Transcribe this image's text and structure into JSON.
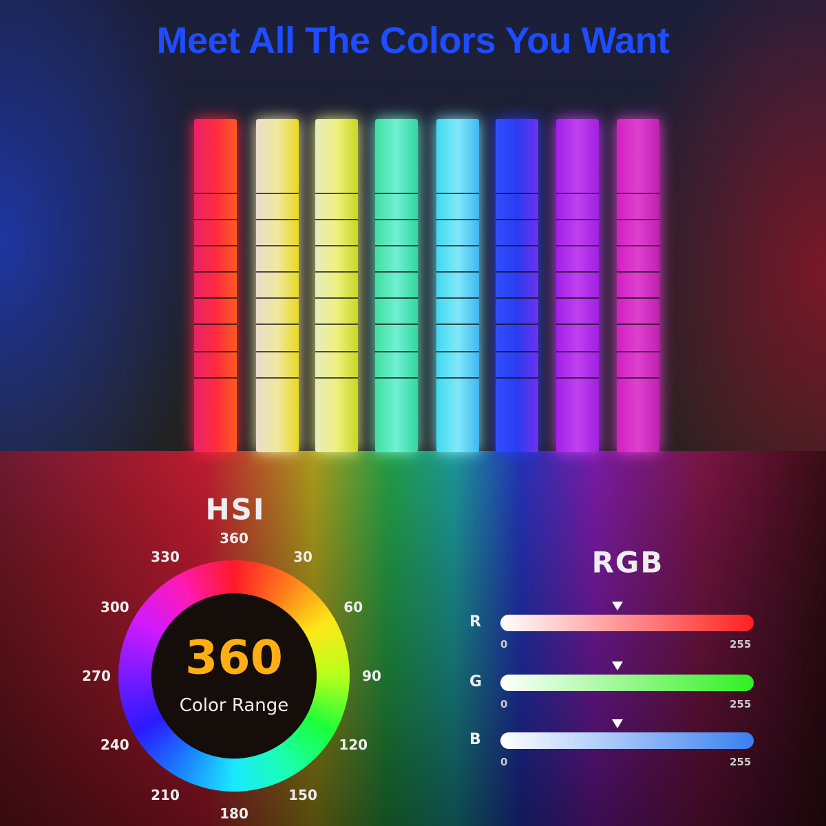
{
  "title": "Meet All The Colors You Want",
  "light_bars": [
    {
      "colors": [
        "#e8226a",
        "#ff2a40",
        "#ff5a20"
      ]
    },
    {
      "colors": [
        "#eadccc",
        "#f0e8a0",
        "#e8d820"
      ]
    },
    {
      "colors": [
        "#e6ecc0",
        "#eef080",
        "#c8d820"
      ]
    },
    {
      "colors": [
        "#40e0a0",
        "#70f0d0",
        "#30d8a0"
      ]
    },
    {
      "colors": [
        "#40d8f0",
        "#80e8f8",
        "#40b8f0"
      ]
    },
    {
      "colors": [
        "#3050ff",
        "#2a3cf0",
        "#7030f0"
      ]
    },
    {
      "colors": [
        "#a020e8",
        "#c040f0",
        "#a020e0"
      ]
    },
    {
      "colors": [
        "#d020c0",
        "#e040d0",
        "#c020b0"
      ]
    }
  ],
  "hsi": {
    "title": "HSI",
    "center_number": "360",
    "center_label": "Color Range",
    "angle_labels": [
      "360",
      "30",
      "60",
      "90",
      "120",
      "150",
      "180",
      "210",
      "240",
      "270",
      "300",
      "330"
    ]
  },
  "rgb": {
    "title": "RGB",
    "channels": [
      {
        "label": "R",
        "min": "0",
        "max": "255",
        "value_fraction": 0.5,
        "color": "#ff2020"
      },
      {
        "label": "G",
        "min": "0",
        "max": "255",
        "value_fraction": 0.5,
        "color": "#30f020"
      },
      {
        "label": "B",
        "min": "0",
        "max": "255",
        "value_fraction": 0.5,
        "color": "#3a80f0"
      }
    ]
  }
}
